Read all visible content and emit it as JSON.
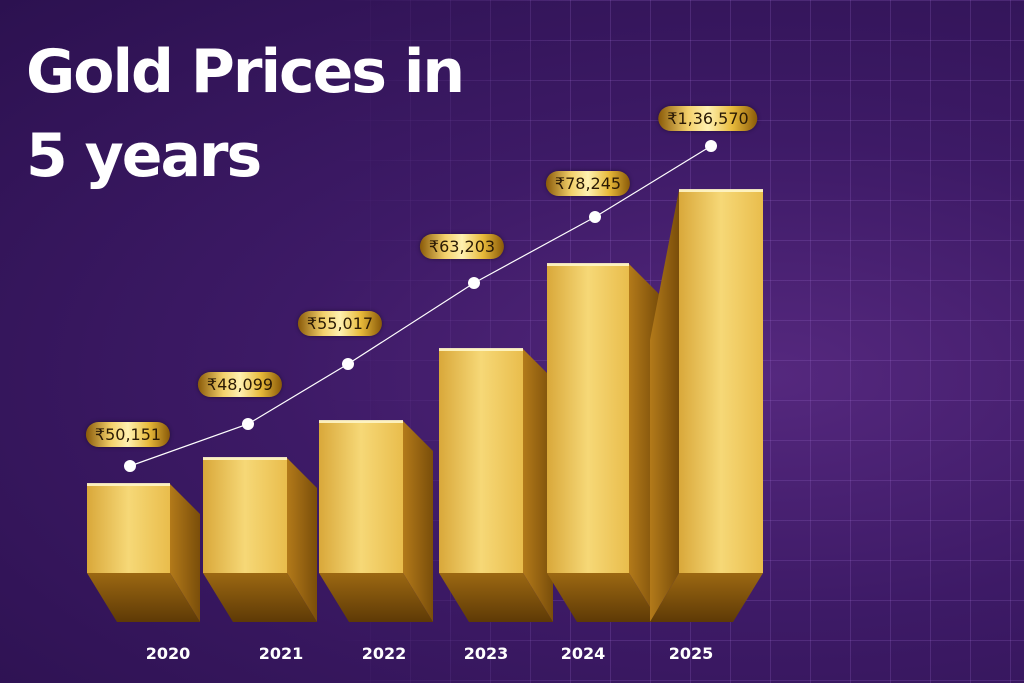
{
  "title_line1": "Gold Prices in",
  "title_line2": "5 years",
  "colors": {
    "background": "#3d1a66",
    "gold": "#f0cc5c",
    "line": "#ffffff"
  },
  "chart_data": {
    "type": "bar",
    "title": "Gold Prices in 5 years",
    "categories": [
      "2020",
      "2021",
      "2022",
      "2023",
      "2024",
      "2025"
    ],
    "values": [
      50151,
      48099,
      55017,
      63203,
      78245,
      136570
    ],
    "labels": [
      "₹50,151",
      "₹48,099",
      "₹55,017",
      "₹63,203",
      "₹78,245",
      "₹1,36,570"
    ],
    "overlay": "line with markers",
    "grid": true
  }
}
